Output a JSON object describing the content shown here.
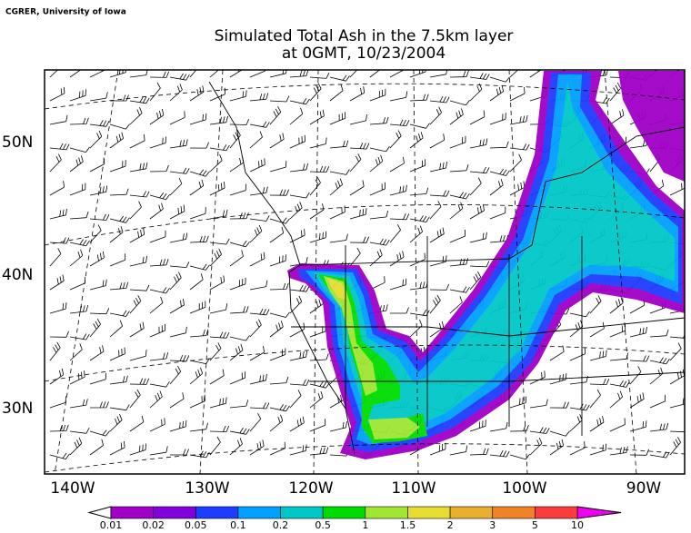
{
  "credit": "CGRER, University of Iowa",
  "title": [
    "Simulated Total Ash in the 7.5km layer",
    "at 0GMT, 10/23/2004"
  ],
  "lat_labels": [
    "50N",
    "40N",
    "30N"
  ],
  "lon_labels": [
    "140W",
    "130W",
    "120W",
    "110W",
    "100W",
    "90W"
  ],
  "colorbar": {
    "labels": [
      "0.01",
      "0.02",
      "0.05",
      "0.1",
      "0.2",
      "0.5",
      "1",
      "1.5",
      "2",
      "3",
      "5",
      "10"
    ],
    "colors": [
      "#a000c8",
      "#8200dc",
      "#1e3cff",
      "#00a0ff",
      "#00c8c8",
      "#00dc00",
      "#a0e632",
      "#e6dc32",
      "#e6af2d",
      "#f08228",
      "#fa3c3c"
    ],
    "under_color": "#ffffff",
    "over_color": "#f000f0"
  }
}
